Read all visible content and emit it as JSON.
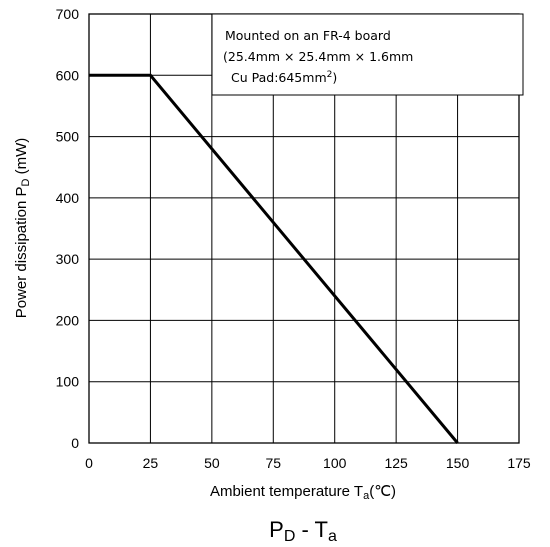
{
  "chart_data": {
    "type": "line",
    "x": [
      0,
      25,
      150
    ],
    "series": [
      {
        "values": [
          600,
          600,
          0
        ]
      }
    ],
    "xlim": [
      0,
      175
    ],
    "ylim": [
      0,
      700
    ],
    "x_ticks": [
      "0",
      "25",
      "50",
      "75",
      "100",
      "125",
      "150",
      "175"
    ],
    "y_ticks": [
      "0",
      "100",
      "200",
      "300",
      "400",
      "500",
      "600",
      "700"
    ],
    "grid": true,
    "xlabel": {
      "main": "Ambient temperature  T",
      "sub": "a",
      "unit": "(℃)"
    },
    "ylabel": {
      "main": "Power dissipation  P",
      "sub": "D",
      "unit": "  (mW)"
    },
    "caption": {
      "p": "P",
      "p_sub": "D",
      "dash": " - T",
      "t_sub": "a"
    },
    "annotation": {
      "line1": "Mounted on an FR-4 board",
      "line2": "(25.4mm × 25.4mm × 1.6mm",
      "line3_pre": "Cu Pad:645mm",
      "line3_sup": "2",
      "line3_post": ")"
    },
    "colors": {
      "line": "#000000",
      "grid": "#000000",
      "background": "#ffffff"
    }
  }
}
